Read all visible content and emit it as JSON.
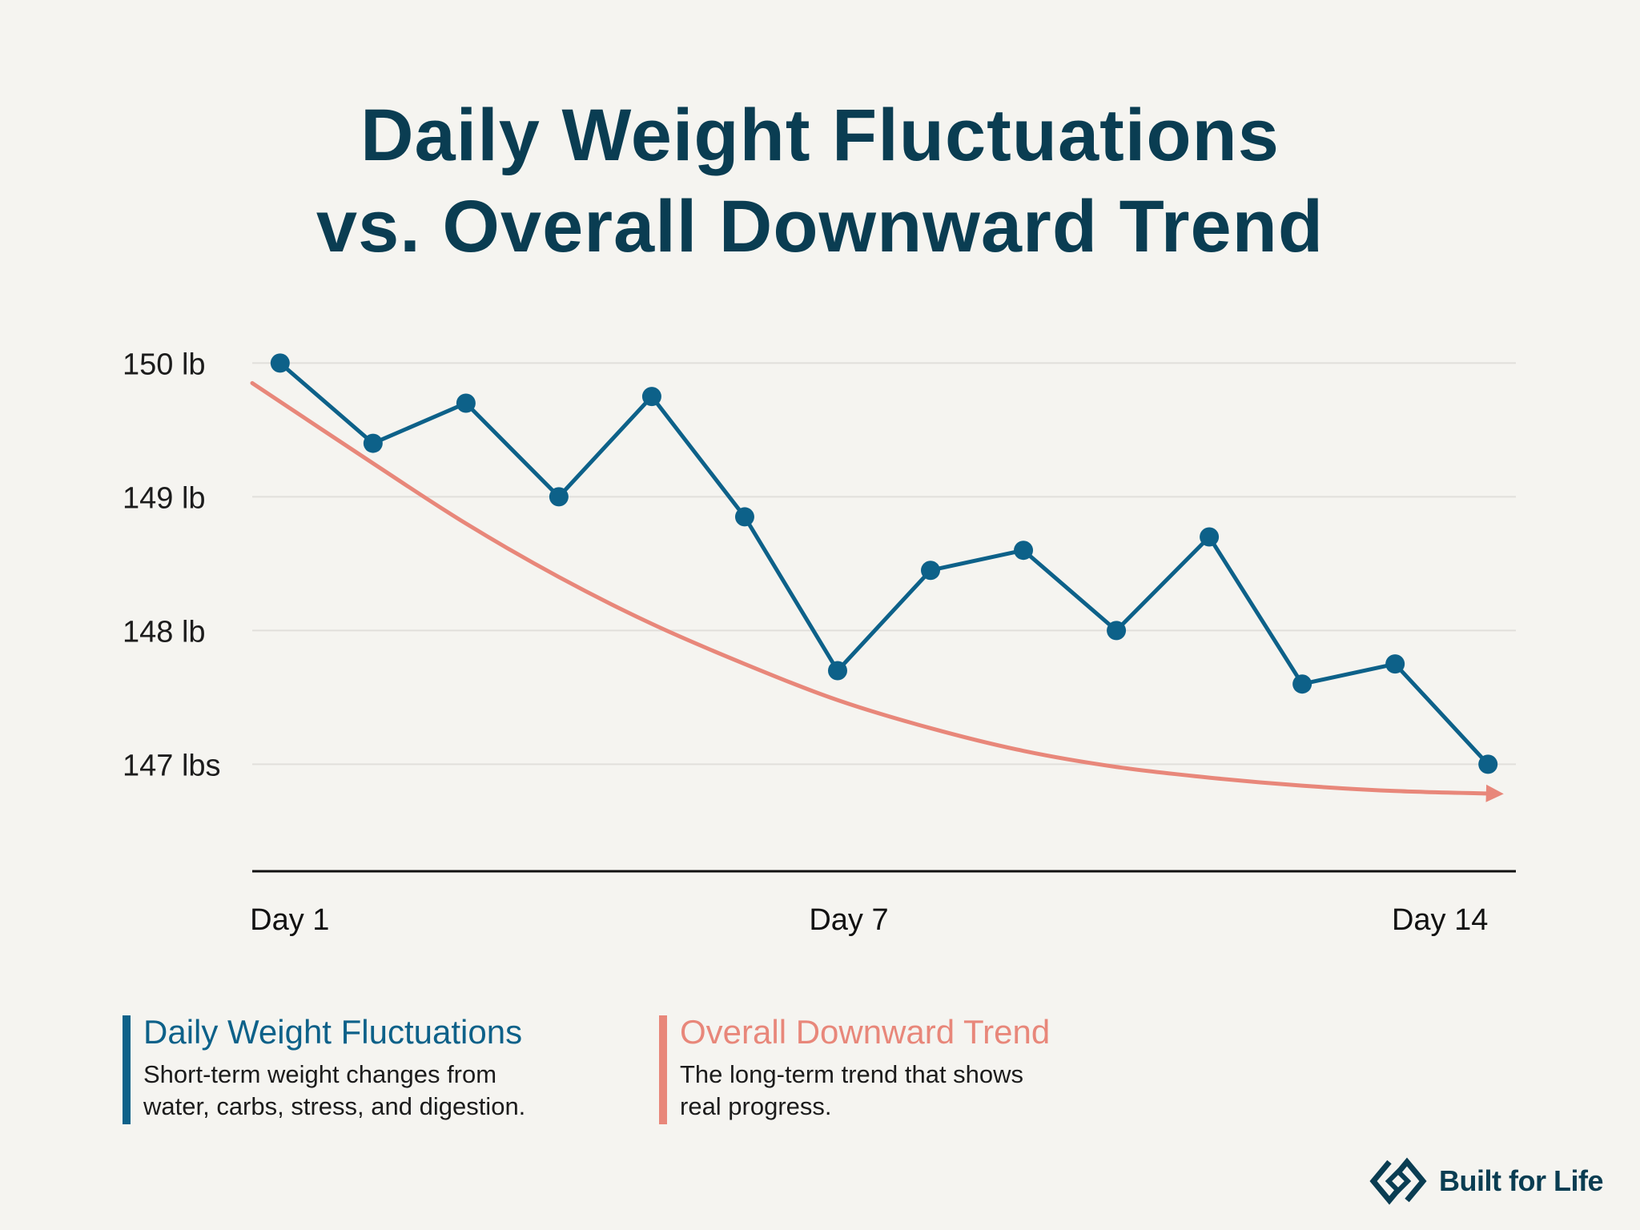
{
  "title": {
    "line1": "Daily Weight Fluctuations",
    "line2": "vs. Overall Downward Trend"
  },
  "colors": {
    "background": "#f5f4f0",
    "title": "#0a3d52",
    "series": "#0d6189",
    "trend": "#e8877a",
    "grid": "#e1dfdb",
    "axis": "#111111"
  },
  "chart_data": {
    "type": "line",
    "title": "Daily Weight Fluctuations vs. Overall Downward Trend",
    "xlabel": "",
    "ylabel": "",
    "x": [
      1,
      2,
      3,
      4,
      5,
      6,
      7,
      8,
      9,
      10,
      11,
      12,
      13,
      14
    ],
    "xlim": [
      0.7,
      14.3
    ],
    "ylim": [
      146.2,
      150.14
    ],
    "grid": true,
    "y_ticks": [
      {
        "value": 150,
        "label": "150 lb"
      },
      {
        "value": 149,
        "label": "149 lb"
      },
      {
        "value": 148,
        "label": "148 lb"
      },
      {
        "value": 147,
        "label": "147 lbs"
      }
    ],
    "x_ticks": [
      {
        "value": 1,
        "label": "Day 1"
      },
      {
        "value": 7,
        "label": "Day 7"
      },
      {
        "value": 14,
        "label": "Day 14"
      }
    ],
    "series": [
      {
        "name": "Daily Weight Fluctuations",
        "style": "line-with-markers",
        "x": [
          1,
          2,
          3,
          4,
          5,
          6,
          7,
          8,
          9,
          10,
          11,
          12,
          13,
          14
        ],
        "values": [
          150.0,
          149.4,
          149.7,
          149.0,
          149.75,
          148.85,
          147.7,
          148.45,
          148.6,
          148.0,
          148.7,
          147.6,
          147.75,
          147.0
        ]
      },
      {
        "name": "Overall Downward Trend",
        "style": "smooth-curve-with-arrow",
        "x": [
          0.7,
          2,
          3,
          4,
          5,
          6,
          7,
          8,
          9,
          10,
          11,
          12,
          13,
          14.1
        ],
        "values": [
          149.85,
          149.25,
          148.8,
          148.4,
          148.05,
          147.75,
          147.48,
          147.27,
          147.1,
          146.98,
          146.9,
          146.84,
          146.8,
          146.78
        ]
      }
    ]
  },
  "legend": [
    {
      "title": "Daily Weight Fluctuations",
      "line1": "Short-term weight changes from",
      "line2": "water, carbs, stress, and digestion."
    },
    {
      "title": "Overall Downward Trend",
      "line1": "The long-term trend that shows",
      "line2": "real progress."
    }
  ],
  "brand": {
    "name": "Built for Life",
    "icon": "diamond-logo-icon"
  }
}
